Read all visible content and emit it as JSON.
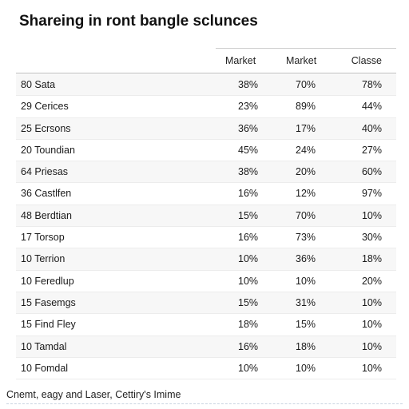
{
  "title": "Shareing in ront bangle sclunces",
  "columns": [
    "Market",
    "Market",
    "Classe"
  ],
  "rows": [
    {
      "label": "80 Sata",
      "values": [
        "38%",
        "70%",
        "78%"
      ]
    },
    {
      "label": "29 Cerices",
      "values": [
        "23%",
        "89%",
        "44%"
      ]
    },
    {
      "label": "25 Ecrsons",
      "values": [
        "36%",
        "17%",
        "40%"
      ]
    },
    {
      "label": "20 Toundian",
      "values": [
        "45%",
        "24%",
        "27%"
      ]
    },
    {
      "label": "64 Priesas",
      "values": [
        "38%",
        "20%",
        "60%"
      ]
    },
    {
      "label": "36 Castlfen",
      "values": [
        "16%",
        "12%",
        "97%"
      ]
    },
    {
      "label": "48 Berdtian",
      "values": [
        "15%",
        "70%",
        "10%"
      ]
    },
    {
      "label": "17 Torsop",
      "values": [
        "16%",
        "73%",
        "30%"
      ]
    },
    {
      "label": "10 Terrion",
      "values": [
        "10%",
        "36%",
        "18%"
      ]
    },
    {
      "label": "10 Feredlup",
      "values": [
        "10%",
        "10%",
        "20%"
      ]
    },
    {
      "label": "15 Fasemgs",
      "values": [
        "15%",
        "31%",
        "10%"
      ]
    },
    {
      "label": "15 Find Fley",
      "values": [
        "18%",
        "15%",
        "10%"
      ]
    },
    {
      "label": "10 Tamdal",
      "values": [
        "16%",
        "18%",
        "10%"
      ]
    },
    {
      "label": "10 Fomdal",
      "values": [
        "10%",
        "10%",
        "10%"
      ]
    }
  ],
  "footer": "Cnemt, eagy and Laser, Cettiry's Imime"
}
